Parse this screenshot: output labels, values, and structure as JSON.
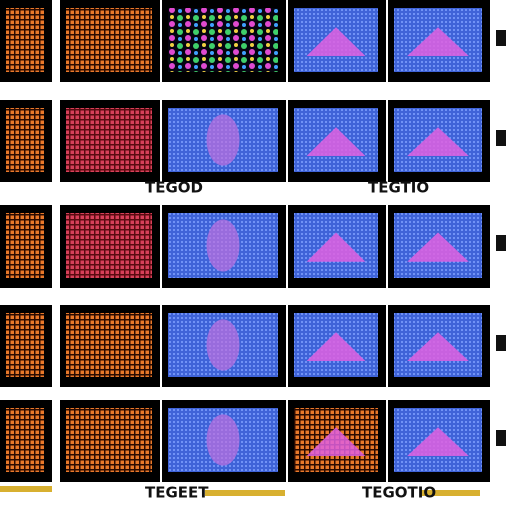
{
  "labels": [
    "TEGOD",
    "TEGTIO",
    "TEGEET",
    "TEGOTIO"
  ]
}
